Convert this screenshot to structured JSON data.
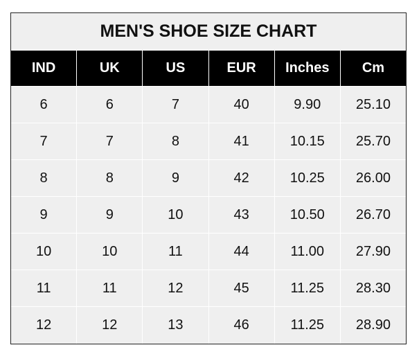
{
  "chart_data": {
    "type": "table",
    "title": "MEN'S SHOE SIZE CHART",
    "columns": [
      "IND",
      "UK",
      "US",
      "EUR",
      "Inches",
      "Cm"
    ],
    "rows": [
      [
        "6",
        "6",
        "7",
        "40",
        "9.90",
        "25.10"
      ],
      [
        "7",
        "7",
        "8",
        "41",
        "10.15",
        "25.70"
      ],
      [
        "8",
        "8",
        "9",
        "42",
        "10.25",
        "26.00"
      ],
      [
        "9",
        "9",
        "10",
        "43",
        "10.50",
        "26.70"
      ],
      [
        "10",
        "10",
        "11",
        "44",
        "11.00",
        "27.90"
      ],
      [
        "11",
        "11",
        "12",
        "45",
        "11.25",
        "28.30"
      ],
      [
        "12",
        "12",
        "13",
        "46",
        "11.25",
        "28.90"
      ]
    ],
    "colors": {
      "header_bg": "#000000",
      "header_text": "#ffffff",
      "cell_bg": "#efefef",
      "grid": "#ffffff"
    }
  }
}
